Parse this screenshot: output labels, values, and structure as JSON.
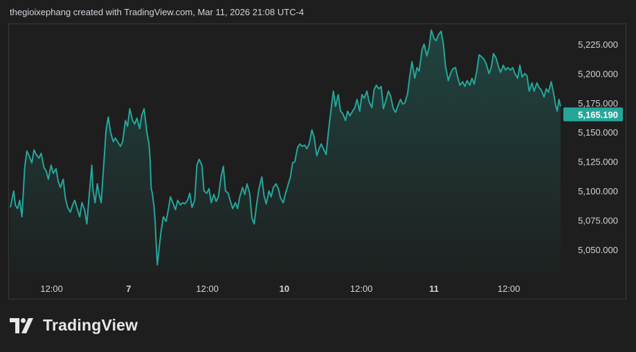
{
  "header": {
    "credit": "thegioixephang created with TradingView.com, Mar 11, 2026 21:08 UTC-4"
  },
  "brand": {
    "name": "TradingView",
    "logo_icon": "tradingview-logo-icon"
  },
  "colors": {
    "background": "#1e1e1e",
    "line": "#26a69a",
    "badge": "#26a69a",
    "text": "#d1d4dc"
  },
  "chart_data": {
    "type": "area",
    "title": "",
    "xlabel": "",
    "ylabel": "",
    "grid": false,
    "ylim": [
      5030,
      5242
    ],
    "yticks": [
      5050,
      5075,
      5100,
      5125,
      5150,
      5175,
      5200,
      5225
    ],
    "ytick_labels": [
      "5,050.000",
      "5,075.000",
      "5,100.000",
      "5,125.000",
      "5,150.000",
      "5,175.000",
      "5,200.000",
      "5,225.000"
    ],
    "xticks": [
      {
        "t": 0.075,
        "label": "12:00",
        "bold": false
      },
      {
        "t": 0.215,
        "label": "7",
        "bold": true
      },
      {
        "t": 0.358,
        "label": "12:00",
        "bold": false
      },
      {
        "t": 0.498,
        "label": "10",
        "bold": true
      },
      {
        "t": 0.638,
        "label": "12:00",
        "bold": false
      },
      {
        "t": 0.77,
        "label": "11",
        "bold": true
      },
      {
        "t": 0.906,
        "label": "12:00",
        "bold": false
      }
    ],
    "last_price": 5165.19,
    "last_price_label": "5,165.190",
    "series": [
      {
        "values": [
          [
            0.0,
            5086
          ],
          [
            0.006,
            5100
          ],
          [
            0.009,
            5088
          ],
          [
            0.013,
            5085
          ],
          [
            0.017,
            5092
          ],
          [
            0.021,
            5078
          ],
          [
            0.026,
            5120
          ],
          [
            0.03,
            5134
          ],
          [
            0.034,
            5130
          ],
          [
            0.039,
            5124
          ],
          [
            0.043,
            5135
          ],
          [
            0.047,
            5131
          ],
          [
            0.052,
            5128
          ],
          [
            0.056,
            5132
          ],
          [
            0.061,
            5120
          ],
          [
            0.065,
            5117
          ],
          [
            0.069,
            5110
          ],
          [
            0.074,
            5122
          ],
          [
            0.078,
            5115
          ],
          [
            0.083,
            5119
          ],
          [
            0.087,
            5108
          ],
          [
            0.091,
            5103
          ],
          [
            0.096,
            5110
          ],
          [
            0.1,
            5094
          ],
          [
            0.104,
            5086
          ],
          [
            0.109,
            5082
          ],
          [
            0.113,
            5088
          ],
          [
            0.117,
            5092
          ],
          [
            0.122,
            5084
          ],
          [
            0.126,
            5078
          ],
          [
            0.13,
            5090
          ],
          [
            0.135,
            5084
          ],
          [
            0.139,
            5072
          ],
          [
            0.143,
            5095
          ],
          [
            0.148,
            5122
          ],
          [
            0.15,
            5101
          ],
          [
            0.154,
            5090
          ],
          [
            0.158,
            5106
          ],
          [
            0.161,
            5098
          ],
          [
            0.165,
            5090
          ],
          [
            0.17,
            5125
          ],
          [
            0.174,
            5152
          ],
          [
            0.178,
            5163
          ],
          [
            0.182,
            5150
          ],
          [
            0.187,
            5142
          ],
          [
            0.191,
            5145
          ],
          [
            0.196,
            5141
          ],
          [
            0.2,
            5138
          ],
          [
            0.204,
            5142
          ],
          [
            0.209,
            5160
          ],
          [
            0.213,
            5155
          ],
          [
            0.217,
            5170
          ],
          [
            0.222,
            5160
          ],
          [
            0.226,
            5157
          ],
          [
            0.23,
            5162
          ],
          [
            0.235,
            5153
          ],
          [
            0.239,
            5165
          ],
          [
            0.243,
            5170
          ],
          [
            0.248,
            5150
          ],
          [
            0.252,
            5140
          ],
          [
            0.254,
            5127
          ],
          [
            0.256,
            5102
          ],
          [
            0.258,
            5098
          ],
          [
            0.261,
            5087
          ],
          [
            0.263,
            5075
          ],
          [
            0.265,
            5055
          ],
          [
            0.267,
            5037
          ],
          [
            0.27,
            5050
          ],
          [
            0.274,
            5066
          ],
          [
            0.278,
            5078
          ],
          [
            0.283,
            5074
          ],
          [
            0.287,
            5084
          ],
          [
            0.291,
            5095
          ],
          [
            0.296,
            5089
          ],
          [
            0.3,
            5084
          ],
          [
            0.304,
            5092
          ],
          [
            0.309,
            5088
          ],
          [
            0.313,
            5090
          ],
          [
            0.317,
            5089
          ],
          [
            0.322,
            5092
          ],
          [
            0.326,
            5098
          ],
          [
            0.33,
            5086
          ],
          [
            0.335,
            5092
          ],
          [
            0.339,
            5122
          ],
          [
            0.343,
            5127
          ],
          [
            0.348,
            5122
          ],
          [
            0.352,
            5100
          ],
          [
            0.357,
            5098
          ],
          [
            0.361,
            5102
          ],
          [
            0.365,
            5090
          ],
          [
            0.37,
            5097
          ],
          [
            0.374,
            5091
          ],
          [
            0.378,
            5095
          ],
          [
            0.383,
            5112
          ],
          [
            0.387,
            5121
          ],
          [
            0.391,
            5100
          ],
          [
            0.396,
            5098
          ],
          [
            0.4,
            5091
          ],
          [
            0.404,
            5085
          ],
          [
            0.409,
            5090
          ],
          [
            0.413,
            5085
          ],
          [
            0.417,
            5095
          ],
          [
            0.422,
            5103
          ],
          [
            0.426,
            5097
          ],
          [
            0.43,
            5106
          ],
          [
            0.435,
            5098
          ],
          [
            0.439,
            5077
          ],
          [
            0.443,
            5072
          ],
          [
            0.448,
            5090
          ],
          [
            0.452,
            5102
          ],
          [
            0.457,
            5112
          ],
          [
            0.461,
            5096
          ],
          [
            0.465,
            5089
          ],
          [
            0.47,
            5100
          ],
          [
            0.474,
            5095
          ],
          [
            0.478,
            5103
          ],
          [
            0.483,
            5106
          ],
          [
            0.487,
            5102
          ],
          [
            0.491,
            5094
          ],
          [
            0.496,
            5090
          ],
          [
            0.5,
            5098
          ],
          [
            0.504,
            5104
          ],
          [
            0.509,
            5112
          ],
          [
            0.513,
            5124
          ],
          [
            0.517,
            5125
          ],
          [
            0.522,
            5137
          ],
          [
            0.526,
            5140
          ],
          [
            0.53,
            5138
          ],
          [
            0.535,
            5139
          ],
          [
            0.539,
            5136
          ],
          [
            0.543,
            5140
          ],
          [
            0.548,
            5152
          ],
          [
            0.552,
            5146
          ],
          [
            0.557,
            5130
          ],
          [
            0.561,
            5136
          ],
          [
            0.565,
            5140
          ],
          [
            0.57,
            5135
          ],
          [
            0.574,
            5131
          ],
          [
            0.578,
            5150
          ],
          [
            0.583,
            5170
          ],
          [
            0.587,
            5185
          ],
          [
            0.591,
            5172
          ],
          [
            0.596,
            5182
          ],
          [
            0.6,
            5168
          ],
          [
            0.604,
            5166
          ],
          [
            0.609,
            5160
          ],
          [
            0.613,
            5168
          ],
          [
            0.617,
            5164
          ],
          [
            0.622,
            5168
          ],
          [
            0.626,
            5171
          ],
          [
            0.63,
            5178
          ],
          [
            0.635,
            5168
          ],
          [
            0.639,
            5182
          ],
          [
            0.643,
            5179
          ],
          [
            0.648,
            5185
          ],
          [
            0.652,
            5176
          ],
          [
            0.657,
            5171
          ],
          [
            0.661,
            5186
          ],
          [
            0.665,
            5190
          ],
          [
            0.67,
            5187
          ],
          [
            0.674,
            5189
          ],
          [
            0.678,
            5170
          ],
          [
            0.683,
            5178
          ],
          [
            0.687,
            5185
          ],
          [
            0.691,
            5181
          ],
          [
            0.696,
            5170
          ],
          [
            0.7,
            5167
          ],
          [
            0.704,
            5172
          ],
          [
            0.709,
            5178
          ],
          [
            0.713,
            5174
          ],
          [
            0.717,
            5175
          ],
          [
            0.722,
            5183
          ],
          [
            0.726,
            5198
          ],
          [
            0.73,
            5210
          ],
          [
            0.735,
            5196
          ],
          [
            0.739,
            5205
          ],
          [
            0.743,
            5202
          ],
          [
            0.748,
            5220
          ],
          [
            0.752,
            5225
          ],
          [
            0.757,
            5215
          ],
          [
            0.761,
            5222
          ],
          [
            0.765,
            5237
          ],
          [
            0.77,
            5230
          ],
          [
            0.774,
            5228
          ],
          [
            0.778,
            5233
          ],
          [
            0.783,
            5236
          ],
          [
            0.787,
            5225
          ],
          [
            0.791,
            5206
          ],
          [
            0.796,
            5194
          ],
          [
            0.8,
            5200
          ],
          [
            0.804,
            5204
          ],
          [
            0.809,
            5205
          ],
          [
            0.813,
            5197
          ],
          [
            0.817,
            5190
          ],
          [
            0.822,
            5193
          ],
          [
            0.826,
            5189
          ],
          [
            0.83,
            5194
          ],
          [
            0.835,
            5190
          ],
          [
            0.839,
            5196
          ],
          [
            0.843,
            5191
          ],
          [
            0.848,
            5203
          ],
          [
            0.852,
            5216
          ],
          [
            0.857,
            5214
          ],
          [
            0.861,
            5212
          ],
          [
            0.865,
            5208
          ],
          [
            0.87,
            5200
          ],
          [
            0.874,
            5205
          ],
          [
            0.878,
            5217
          ],
          [
            0.883,
            5213
          ],
          [
            0.887,
            5206
          ],
          [
            0.891,
            5201
          ],
          [
            0.896,
            5207
          ],
          [
            0.9,
            5203
          ],
          [
            0.904,
            5205
          ],
          [
            0.909,
            5203
          ],
          [
            0.913,
            5205
          ],
          [
            0.917,
            5200
          ],
          [
            0.922,
            5196
          ],
          [
            0.926,
            5207
          ],
          [
            0.93,
            5197
          ],
          [
            0.935,
            5200
          ],
          [
            0.939,
            5198
          ],
          [
            0.943,
            5185
          ],
          [
            0.948,
            5192
          ],
          [
            0.952,
            5185
          ],
          [
            0.957,
            5192
          ],
          [
            0.961,
            5188
          ],
          [
            0.965,
            5186
          ],
          [
            0.97,
            5180
          ],
          [
            0.974,
            5187
          ],
          [
            0.978,
            5184
          ],
          [
            0.983,
            5193
          ],
          [
            0.987,
            5184
          ],
          [
            0.991,
            5173
          ],
          [
            0.994,
            5168
          ],
          [
            0.997,
            5178
          ],
          [
            1.0,
            5172
          ]
        ]
      }
    ]
  }
}
